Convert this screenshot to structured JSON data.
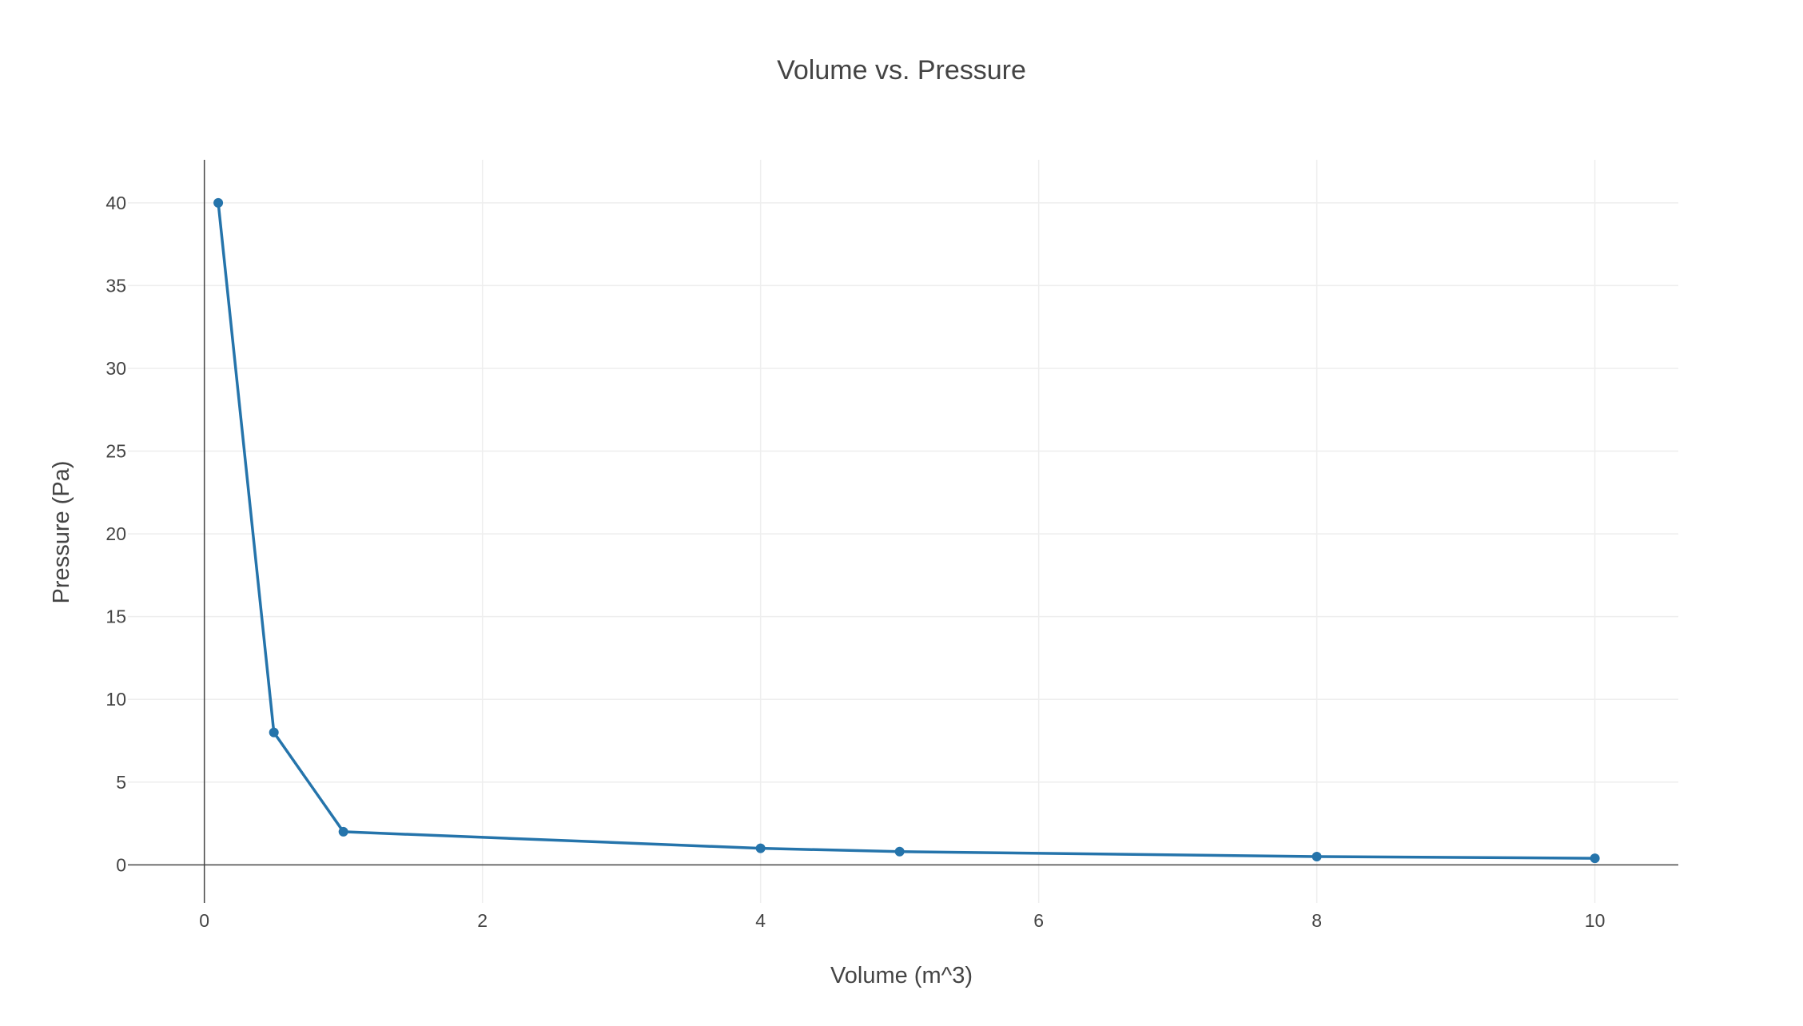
{
  "chart_data": {
    "type": "line",
    "title": "Volume vs. Pressure",
    "xlabel": "Volume (m^3)",
    "ylabel": "Pressure (Pa)",
    "xlim": [
      -0.55,
      10.6
    ],
    "ylim": [
      -2.3,
      42.6
    ],
    "x_ticks": [
      0,
      2,
      4,
      6,
      8,
      10
    ],
    "y_ticks": [
      0,
      5,
      10,
      15,
      20,
      25,
      30,
      35,
      40
    ],
    "grid": true,
    "legend": "none",
    "colors": {
      "line": "#2574ab",
      "grid": "#eeeeee",
      "axis": "#444444",
      "text": "#444444"
    },
    "series": [
      {
        "x": [
          0.1,
          0.5,
          1,
          4,
          5,
          8,
          10
        ],
        "y": [
          40,
          8,
          2,
          1,
          0.8,
          0.5,
          0.4
        ]
      }
    ]
  }
}
